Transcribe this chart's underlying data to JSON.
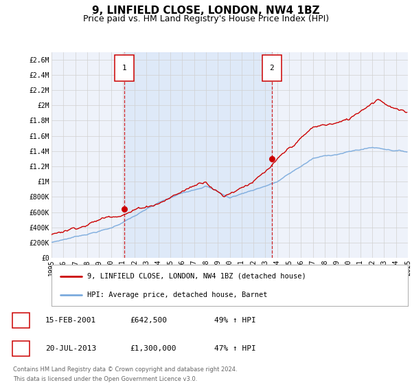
{
  "title": "9, LINFIELD CLOSE, LONDON, NW4 1BZ",
  "subtitle": "Price paid vs. HM Land Registry's House Price Index (HPI)",
  "title_fontsize": 11,
  "subtitle_fontsize": 9,
  "xlim": [
    1995,
    2025
  ],
  "ylim": [
    0,
    2700000
  ],
  "yticks": [
    0,
    200000,
    400000,
    600000,
    800000,
    1000000,
    1200000,
    1400000,
    1600000,
    1800000,
    2000000,
    2200000,
    2400000,
    2600000
  ],
  "ytick_labels": [
    "£0",
    "£200K",
    "£400K",
    "£600K",
    "£800K",
    "£1M",
    "£1.2M",
    "£1.4M",
    "£1.6M",
    "£1.8M",
    "£2M",
    "£2.2M",
    "£2.4M",
    "£2.6M"
  ],
  "xticks": [
    1995,
    1996,
    1997,
    1998,
    1999,
    2000,
    2001,
    2002,
    2003,
    2004,
    2005,
    2006,
    2007,
    2008,
    2009,
    2010,
    2011,
    2012,
    2013,
    2014,
    2015,
    2016,
    2017,
    2018,
    2019,
    2020,
    2021,
    2022,
    2023,
    2024,
    2025
  ],
  "bg_color": "#ffffff",
  "plot_bg_color": "#eef2fa",
  "grid_color": "#d0d0d0",
  "red_color": "#cc0000",
  "blue_color": "#7aaadd",
  "vspan_color": "#dde8f8",
  "marker1_x": 2001.12,
  "marker1_y": 642500,
  "marker2_x": 2013.55,
  "marker2_y": 1300000,
  "vline1_x": 2001.12,
  "vline2_x": 2013.55,
  "legend_label_red": "9, LINFIELD CLOSE, LONDON, NW4 1BZ (detached house)",
  "legend_label_blue": "HPI: Average price, detached house, Barnet",
  "table_row1": [
    "1",
    "15-FEB-2001",
    "£642,500",
    "49% ↑ HPI"
  ],
  "table_row2": [
    "2",
    "20-JUL-2013",
    "£1,300,000",
    "47% ↑ HPI"
  ],
  "footer_line1": "Contains HM Land Registry data © Crown copyright and database right 2024.",
  "footer_line2": "This data is licensed under the Open Government Licence v3.0."
}
